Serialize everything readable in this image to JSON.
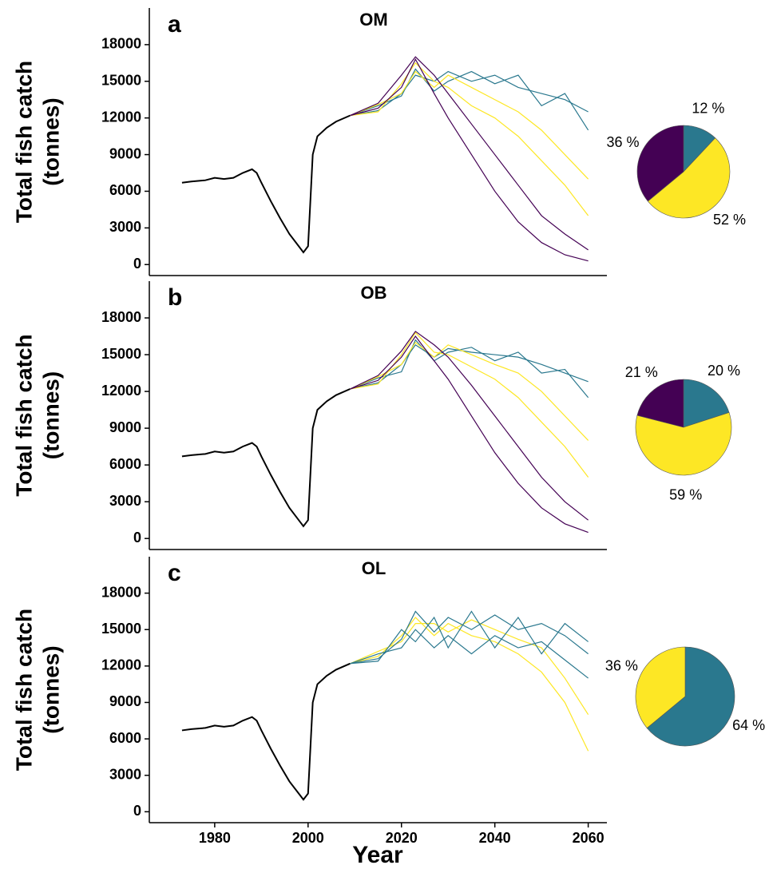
{
  "chart_data": [
    {
      "type": "line",
      "panel_label": "a",
      "title": "OM",
      "y_label": [
        "Total fish catch",
        "(tonnes)"
      ],
      "xlim": [
        1966,
        2064
      ],
      "ylim": [
        -900,
        21000
      ],
      "yticks": [
        0,
        3000,
        6000,
        9000,
        12000,
        15000,
        18000
      ],
      "series": [
        {
          "color": "#000000",
          "x": [
            1973,
            1975,
            1978,
            1980,
            1982,
            1984,
            1986,
            1988,
            1989,
            1990,
            1992,
            1994,
            1996,
            1998,
            1999,
            2000,
            2001,
            2002,
            2004,
            2006,
            2009
          ],
          "values": [
            6700,
            6800,
            6900,
            7100,
            7000,
            7100,
            7500,
            7800,
            7500,
            6700,
            5200,
            3800,
            2500,
            1500,
            1000,
            1500,
            9000,
            10500,
            11200,
            11700,
            12200
          ]
        },
        {
          "color": "#2a788e",
          "x": [
            2009,
            2015,
            2020,
            2023,
            2027,
            2030,
            2035,
            2040,
            2045,
            2050,
            2055,
            2060
          ],
          "values": [
            12200,
            12600,
            14000,
            15500,
            15000,
            15800,
            15000,
            15500,
            14500,
            14000,
            13500,
            12500
          ]
        },
        {
          "color": "#2a788e",
          "x": [
            2009,
            2015,
            2020,
            2023,
            2027,
            2030,
            2035,
            2040,
            2045,
            2050,
            2055,
            2060
          ],
          "values": [
            12200,
            13000,
            13800,
            16000,
            14200,
            15000,
            15800,
            14800,
            15500,
            13000,
            14000,
            11000
          ]
        },
        {
          "color": "#fde725",
          "x": [
            2009,
            2015,
            2020,
            2023,
            2027,
            2030,
            2035,
            2040,
            2045,
            2050,
            2055,
            2060
          ],
          "values": [
            12200,
            12500,
            14800,
            16500,
            15000,
            14500,
            13000,
            12000,
            10500,
            8500,
            6500,
            4000
          ]
        },
        {
          "color": "#fde725",
          "x": [
            2009,
            2015,
            2020,
            2023,
            2027,
            2030,
            2035,
            2040,
            2045,
            2050,
            2055,
            2060
          ],
          "values": [
            12200,
            13100,
            14000,
            15800,
            14500,
            15500,
            14500,
            13500,
            12500,
            11000,
            9000,
            7000
          ]
        },
        {
          "color": "#440154",
          "x": [
            2009,
            2015,
            2020,
            2023,
            2027,
            2030,
            2035,
            2040,
            2045,
            2050,
            2055,
            2060
          ],
          "values": [
            12200,
            12800,
            14500,
            16800,
            14000,
            12000,
            9000,
            6000,
            3500,
            1800,
            800,
            300
          ]
        },
        {
          "color": "#440154",
          "x": [
            2009,
            2015,
            2020,
            2023,
            2027,
            2030,
            2035,
            2040,
            2045,
            2050,
            2055,
            2060
          ],
          "values": [
            12200,
            13200,
            15500,
            17000,
            15500,
            14000,
            11500,
            9000,
            6500,
            4000,
            2500,
            1200
          ]
        }
      ]
    },
    {
      "type": "pie",
      "values": [
        12,
        52,
        36
      ],
      "value_labels": [
        "12 %",
        "52 %",
        "36 %"
      ],
      "colors": [
        "#2a788e",
        "#fde725",
        "#440154"
      ]
    },
    {
      "type": "line",
      "panel_label": "b",
      "title": "OB",
      "y_label": [
        "Total fish catch",
        "(tonnes)"
      ],
      "xlim": [
        1966,
        2064
      ],
      "ylim": [
        -900,
        21000
      ],
      "yticks": [
        0,
        3000,
        6000,
        9000,
        12000,
        15000,
        18000
      ],
      "series": [
        {
          "color": "#000000",
          "x": [
            1973,
            1975,
            1978,
            1980,
            1982,
            1984,
            1986,
            1988,
            1989,
            1990,
            1992,
            1994,
            1996,
            1998,
            1999,
            2000,
            2001,
            2002,
            2004,
            2006,
            2009
          ],
          "values": [
            6700,
            6800,
            6900,
            7100,
            7000,
            7100,
            7500,
            7800,
            7500,
            6700,
            5200,
            3800,
            2500,
            1500,
            1000,
            1500,
            9000,
            10500,
            11200,
            11700,
            12200
          ]
        },
        {
          "color": "#2a788e",
          "x": [
            2009,
            2015,
            2020,
            2023,
            2027,
            2030,
            2035,
            2040,
            2045,
            2050,
            2055,
            2060
          ],
          "values": [
            12200,
            12700,
            14200,
            15800,
            14800,
            15500,
            15200,
            15000,
            14800,
            14200,
            13500,
            12800
          ]
        },
        {
          "color": "#2a788e",
          "x": [
            2009,
            2015,
            2020,
            2023,
            2027,
            2030,
            2035,
            2040,
            2045,
            2050,
            2055,
            2060
          ],
          "values": [
            12200,
            13100,
            13600,
            16200,
            14500,
            15200,
            15600,
            14500,
            15200,
            13500,
            13800,
            11500
          ]
        },
        {
          "color": "#fde725",
          "x": [
            2009,
            2015,
            2020,
            2023,
            2027,
            2030,
            2035,
            2040,
            2045,
            2050,
            2055,
            2060
          ],
          "values": [
            12200,
            12600,
            15000,
            16800,
            15200,
            15000,
            14000,
            13000,
            11500,
            9500,
            7500,
            5000
          ]
        },
        {
          "color": "#fde725",
          "x": [
            2009,
            2015,
            2020,
            2023,
            2027,
            2030,
            2035,
            2040,
            2045,
            2050,
            2055,
            2060
          ],
          "values": [
            12200,
            13200,
            14200,
            16000,
            14800,
            15800,
            15000,
            14200,
            13500,
            12000,
            10000,
            8000
          ]
        },
        {
          "color": "#440154",
          "x": [
            2009,
            2015,
            2020,
            2023,
            2027,
            2030,
            2035,
            2040,
            2045,
            2050,
            2055,
            2060
          ],
          "values": [
            12200,
            12900,
            14800,
            16500,
            14500,
            13000,
            10000,
            7000,
            4500,
            2500,
            1200,
            500
          ]
        },
        {
          "color": "#440154",
          "x": [
            2009,
            2015,
            2020,
            2023,
            2027,
            2030,
            2035,
            2040,
            2045,
            2050,
            2055,
            2060
          ],
          "values": [
            12200,
            13300,
            15300,
            16900,
            15800,
            14800,
            12500,
            10000,
            7500,
            5000,
            3000,
            1500
          ]
        }
      ]
    },
    {
      "type": "pie",
      "values": [
        20,
        59,
        21
      ],
      "value_labels": [
        "20 %",
        "59 %",
        "21 %"
      ],
      "colors": [
        "#2a788e",
        "#fde725",
        "#440154"
      ]
    },
    {
      "type": "line",
      "panel_label": "c",
      "title": "OL",
      "x_label": "Year",
      "y_label": [
        "Total fish catch",
        "(tonnes)"
      ],
      "xlim": [
        1966,
        2064
      ],
      "ylim": [
        -900,
        21000
      ],
      "xticks": [
        1980,
        2000,
        2020,
        2040,
        2060
      ],
      "yticks": [
        0,
        3000,
        6000,
        9000,
        12000,
        15000,
        18000
      ],
      "series": [
        {
          "color": "#000000",
          "x": [
            1973,
            1975,
            1978,
            1980,
            1982,
            1984,
            1986,
            1988,
            1989,
            1990,
            1992,
            1994,
            1996,
            1998,
            1999,
            2000,
            2001,
            2002,
            2004,
            2006,
            2009
          ],
          "values": [
            6700,
            6800,
            6900,
            7100,
            7000,
            7100,
            7500,
            7800,
            7500,
            6700,
            5200,
            3800,
            2500,
            1500,
            1000,
            1500,
            9000,
            10500,
            11200,
            11700,
            12200
          ]
        },
        {
          "color": "#fde725",
          "x": [
            2009,
            2015,
            2020,
            2023,
            2027,
            2030,
            2035,
            2040,
            2045,
            2050,
            2055,
            2060
          ],
          "values": [
            12200,
            12800,
            14500,
            16000,
            14500,
            15500,
            14500,
            14000,
            13000,
            11500,
            9000,
            5000
          ]
        },
        {
          "color": "#fde725",
          "x": [
            2009,
            2015,
            2020,
            2023,
            2027,
            2030,
            2035,
            2040,
            2045,
            2050,
            2055,
            2060
          ],
          "values": [
            12200,
            13200,
            14000,
            15500,
            15500,
            14800,
            15800,
            15000,
            14200,
            13500,
            11000,
            8000
          ]
        },
        {
          "color": "#2a788e",
          "x": [
            2009,
            2015,
            2020,
            2023,
            2027,
            2030,
            2035,
            2040,
            2045,
            2050,
            2055,
            2060
          ],
          "values": [
            12200,
            12600,
            14200,
            16500,
            14800,
            16000,
            15000,
            16200,
            15000,
            15500,
            14500,
            13000
          ]
        },
        {
          "color": "#2a788e",
          "x": [
            2009,
            2015,
            2020,
            2023,
            2027,
            2030,
            2035,
            2040,
            2045,
            2050,
            2055,
            2060
          ],
          "values": [
            12200,
            13000,
            13500,
            15000,
            13500,
            14500,
            13000,
            14500,
            13500,
            14000,
            12500,
            11000
          ]
        },
        {
          "color": "#2a788e",
          "x": [
            2009,
            2015,
            2020,
            2023,
            2027,
            2030,
            2035,
            2040,
            2045,
            2050,
            2055,
            2060
          ],
          "values": [
            12200,
            12400,
            15000,
            14000,
            16000,
            13500,
            16500,
            13500,
            16000,
            13000,
            15500,
            14000
          ]
        }
      ]
    },
    {
      "type": "pie",
      "values": [
        64,
        36
      ],
      "value_labels": [
        "64 %",
        "36 %"
      ],
      "colors": [
        "#2a788e",
        "#fde725"
      ]
    }
  ]
}
